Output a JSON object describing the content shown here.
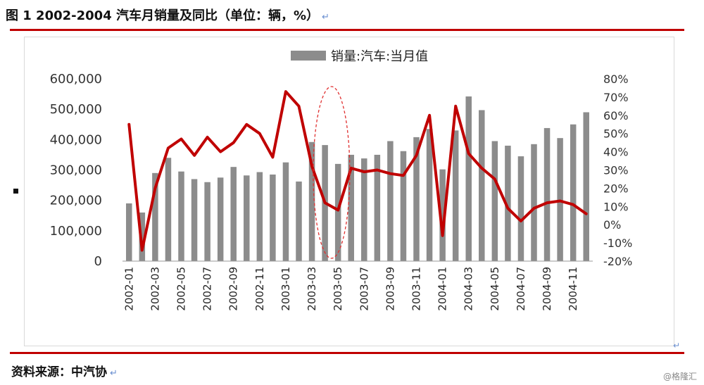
{
  "header": {
    "title": "图 1 2002-2004 汽车月销量及同比（单位：辆，%）"
  },
  "footer": {
    "source": "资料来源：中汽协",
    "watermark": "@格隆汇"
  },
  "chart_data": {
    "type": "bar",
    "legend": [
      "销量:汽车:当月值"
    ],
    "legend_position": "top",
    "colors": {
      "bars": "#8c8c8c",
      "line": "#c00000",
      "highlight": "#e03030"
    },
    "categories": [
      "2002-01",
      "2002-02",
      "2002-03",
      "2002-04",
      "2002-05",
      "2002-06",
      "2002-07",
      "2002-08",
      "2002-09",
      "2002-10",
      "2002-11",
      "2002-12",
      "2003-01",
      "2003-02",
      "2003-03",
      "2003-04",
      "2003-05",
      "2003-06",
      "2003-07",
      "2003-08",
      "2003-09",
      "2003-10",
      "2003-11",
      "2003-12",
      "2004-01",
      "2004-02",
      "2004-03",
      "2004-04",
      "2004-05",
      "2004-06",
      "2004-07",
      "2004-08",
      "2004-09",
      "2004-10",
      "2004-11",
      "2004-12"
    ],
    "x_tick_labels": [
      "2002-01",
      "2002-03",
      "2002-05",
      "2002-07",
      "2002-09",
      "2002-11",
      "2003-01",
      "2003-03",
      "2003-05",
      "2003-07",
      "2003-09",
      "2003-11",
      "2004-01",
      "2004-03",
      "2004-05",
      "2004-07",
      "2004-09",
      "2004-11"
    ],
    "series": [
      {
        "name": "销量:汽车:当月值",
        "axis": "left",
        "type": "bar",
        "values": [
          190000,
          160000,
          290000,
          340000,
          295000,
          270000,
          260000,
          275000,
          310000,
          282000,
          293000,
          285000,
          325000,
          262000,
          392000,
          382000,
          320000,
          350000,
          338000,
          350000,
          395000,
          362000,
          408000,
          435000,
          302000,
          430000,
          542000,
          497000,
          395000,
          380000,
          345000,
          385000,
          438000,
          405000,
          450000,
          490000
        ]
      },
      {
        "axis": "right",
        "type": "line",
        "values": [
          55,
          -14,
          20,
          42,
          47,
          38,
          48,
          40,
          45,
          55,
          50,
          37,
          73,
          65,
          32,
          12,
          8,
          31,
          29,
          30,
          28,
          27,
          38,
          60,
          -6,
          65,
          39,
          31,
          25,
          9,
          2,
          9,
          12,
          13,
          11,
          6
        ]
      }
    ],
    "left_axis": {
      "ylim": [
        0,
        600000
      ],
      "ticks": [
        "0",
        "100,000",
        "200,000",
        "300,000",
        "400,000",
        "500,000",
        "600,000"
      ]
    },
    "right_axis": {
      "ylim": [
        -20,
        80
      ],
      "ticks": [
        "-20%",
        "-10%",
        "0%",
        "10%",
        "20%",
        "30%",
        "40%",
        "50%",
        "60%",
        "70%",
        "80%"
      ]
    },
    "highlight_ellipse_around": [
      "2003-04",
      "2003-05"
    ],
    "grid": false
  }
}
